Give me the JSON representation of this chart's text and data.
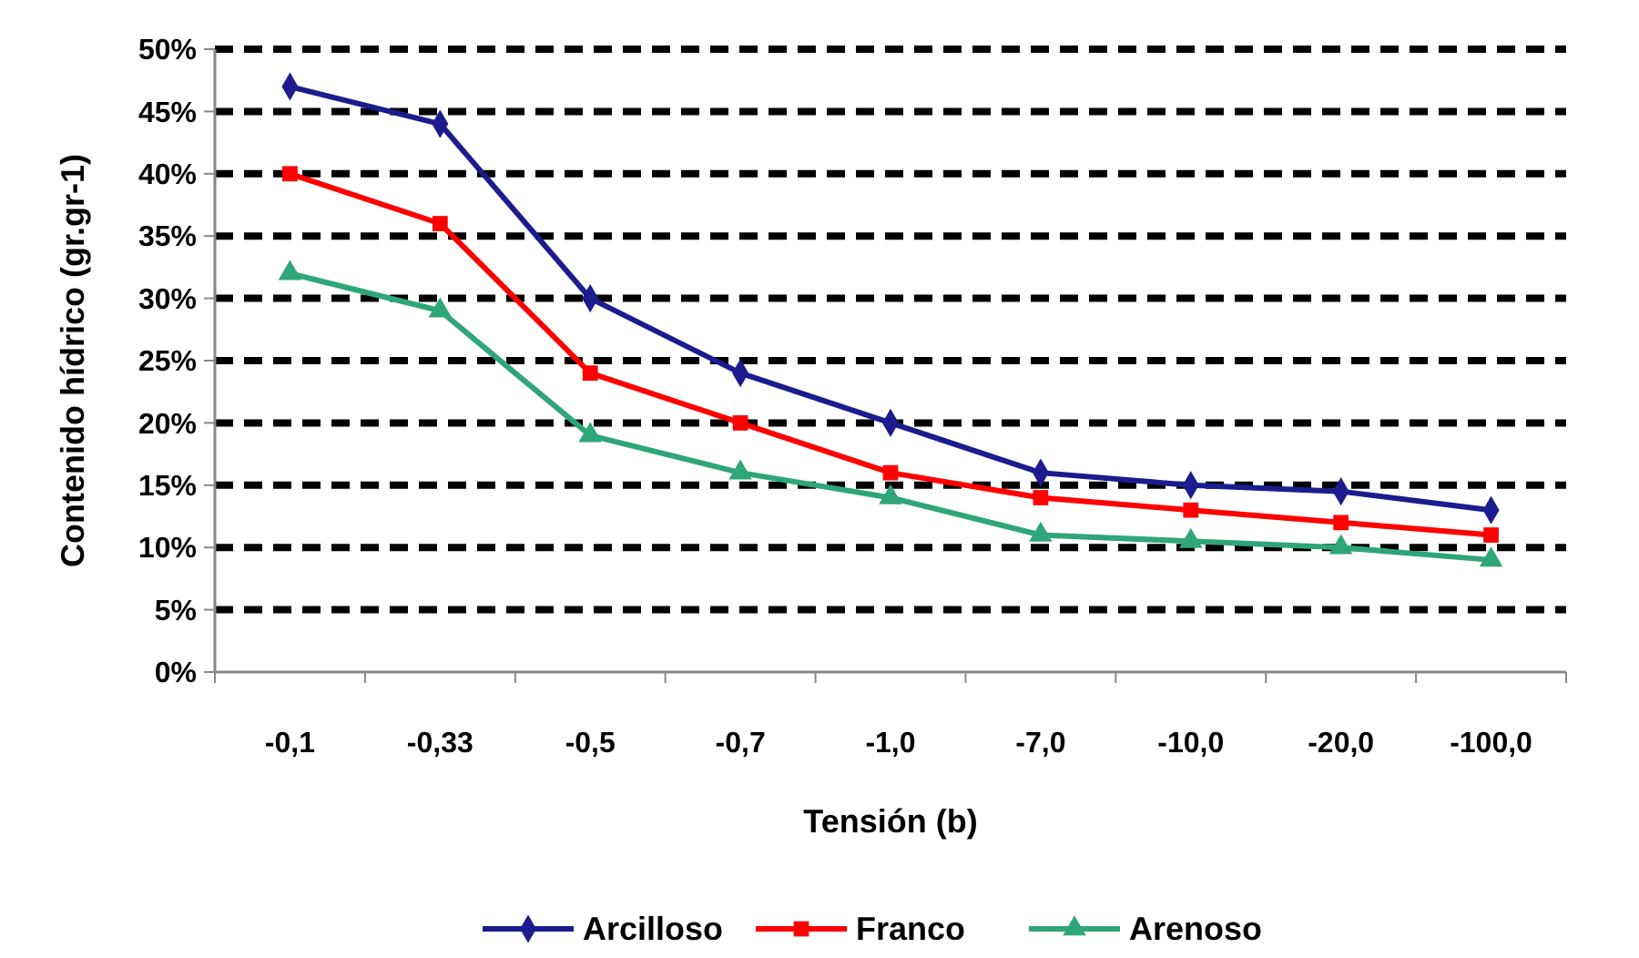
{
  "chart_data": {
    "type": "line",
    "xlabel": "Tensión (b)",
    "ylabel": "Contenido hídrico (gr.gr-1)",
    "categories": [
      "-0,1",
      "-0,33",
      "-0,5",
      "-0,7",
      "-1,0",
      "-7,0",
      "-10,0",
      "-20,0",
      "-100,0"
    ],
    "series": [
      {
        "name": "Arcilloso",
        "color": "#1c1c8e",
        "marker": "diamond",
        "values": [
          47,
          44,
          30,
          24,
          20,
          16,
          15,
          14.5,
          13
        ]
      },
      {
        "name": "Franco",
        "color": "#ff0000",
        "marker": "square",
        "values": [
          40,
          36,
          24,
          20,
          16,
          14,
          13,
          12,
          11
        ]
      },
      {
        "name": "Arenoso",
        "color": "#2fa57a",
        "marker": "triangle",
        "values": [
          32,
          29,
          19,
          16,
          14,
          11,
          10.5,
          10,
          9
        ]
      }
    ],
    "ylim": [
      0,
      50
    ],
    "yticks": [
      {
        "value": 0,
        "label": "0%"
      },
      {
        "value": 5,
        "label": "5%"
      },
      {
        "value": 10,
        "label": "10%"
      },
      {
        "value": 15,
        "label": "15%"
      },
      {
        "value": 20,
        "label": "20%"
      },
      {
        "value": 25,
        "label": "25%"
      },
      {
        "value": 30,
        "label": "30%"
      },
      {
        "value": 35,
        "label": "35%"
      },
      {
        "value": 40,
        "label": "40%"
      },
      {
        "value": 45,
        "label": "45%"
      },
      {
        "value": 50,
        "label": "50%"
      }
    ],
    "grid": "y",
    "line_style": "solid",
    "legend": "bottom"
  }
}
